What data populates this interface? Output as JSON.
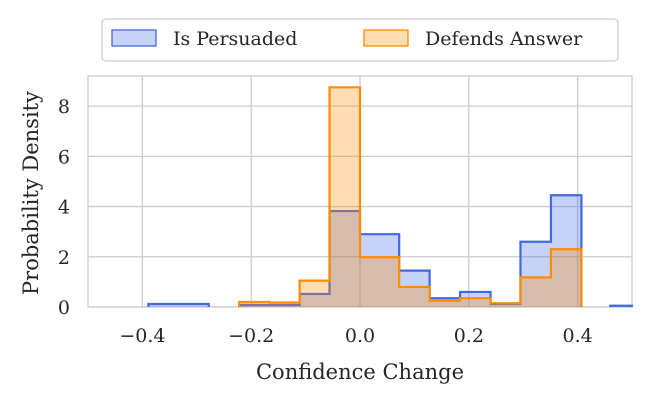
{
  "chart_data": {
    "type": "histogram",
    "xlabel": "Confidence Change",
    "ylabel": "Probability Density",
    "xlim": [
      -0.5,
      0.5
    ],
    "ylim": [
      0,
      9.2
    ],
    "x_ticks": [
      -0.4,
      -0.2,
      0.0,
      0.2,
      0.4
    ],
    "x_tick_labels": [
      "−0.4",
      "−0.2",
      "0.0",
      "0.2",
      "0.4"
    ],
    "y_ticks": [
      0,
      2,
      4,
      6,
      8
    ],
    "y_tick_labels": [
      "0",
      "2",
      "4",
      "6",
      "8"
    ],
    "grid": true,
    "legend_position": "top-center",
    "series": [
      {
        "name": "Is Persuaded",
        "color": "#4169e1",
        "fill": "#c8d2f5",
        "bins": [
          {
            "x0": -0.389,
            "x1": -0.278,
            "value": 0.12
          },
          {
            "x0": -0.222,
            "x1": -0.167,
            "value": 0.08
          },
          {
            "x0": -0.167,
            "x1": -0.111,
            "value": 0.08
          },
          {
            "x0": -0.111,
            "x1": -0.056,
            "value": 0.52
          },
          {
            "x0": -0.056,
            "x1": 0.0,
            "value": 3.82
          },
          {
            "x0": 0.0,
            "x1": 0.072,
            "value": 2.9
          },
          {
            "x0": 0.072,
            "x1": 0.128,
            "value": 1.45
          },
          {
            "x0": 0.128,
            "x1": 0.184,
            "value": 0.35
          },
          {
            "x0": 0.184,
            "x1": 0.24,
            "value": 0.6
          },
          {
            "x0": 0.24,
            "x1": 0.295,
            "value": 0.12
          },
          {
            "x0": 0.295,
            "x1": 0.351,
            "value": 2.6
          },
          {
            "x0": 0.351,
            "x1": 0.407,
            "value": 4.45
          },
          {
            "x0": 0.46,
            "x1": 0.5,
            "value": 0.05
          }
        ]
      },
      {
        "name": "Defends Answer",
        "color": "#ff8c00",
        "fill": "#ffdcb2",
        "bins": [
          {
            "x0": -0.222,
            "x1": -0.167,
            "value": 0.2
          },
          {
            "x0": -0.167,
            "x1": -0.111,
            "value": 0.18
          },
          {
            "x0": -0.111,
            "x1": -0.056,
            "value": 1.05
          },
          {
            "x0": -0.056,
            "x1": 0.0,
            "value": 8.75
          },
          {
            "x0": 0.0,
            "x1": 0.072,
            "value": 1.98
          },
          {
            "x0": 0.072,
            "x1": 0.128,
            "value": 0.8
          },
          {
            "x0": 0.128,
            "x1": 0.184,
            "value": 0.25
          },
          {
            "x0": 0.184,
            "x1": 0.24,
            "value": 0.35
          },
          {
            "x0": 0.24,
            "x1": 0.295,
            "value": 0.15
          },
          {
            "x0": 0.295,
            "x1": 0.351,
            "value": 1.18
          },
          {
            "x0": 0.351,
            "x1": 0.407,
            "value": 2.3
          }
        ]
      }
    ]
  }
}
